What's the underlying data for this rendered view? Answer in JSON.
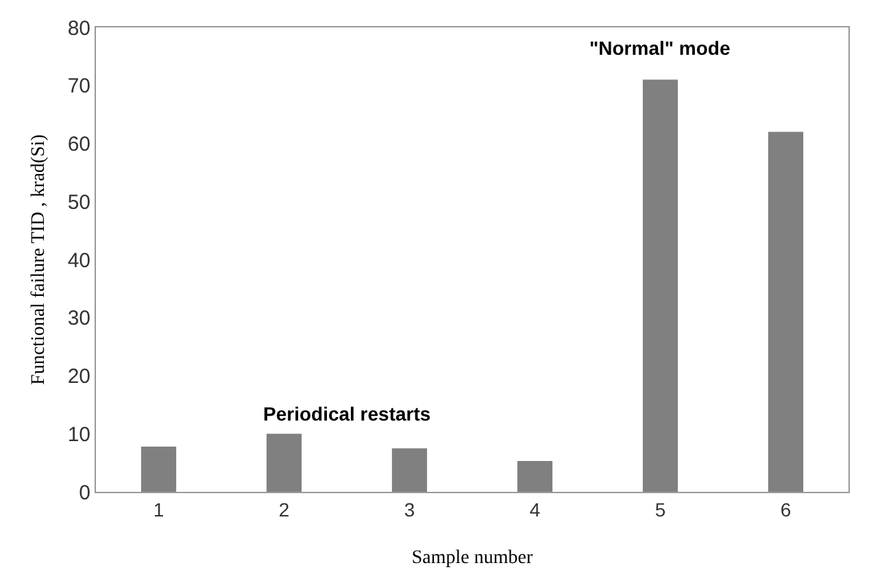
{
  "chart_data": {
    "type": "bar",
    "categories": [
      "1",
      "2",
      "3",
      "4",
      "5",
      "6"
    ],
    "values": [
      7.8,
      10,
      7.5,
      5.3,
      71,
      62
    ],
    "color": "#808080",
    "xlabel": "Sample number",
    "ylabel": "Functional failure TID , krad(Si)",
    "ylim": [
      0,
      80
    ],
    "yticks": [
      0,
      10,
      20,
      30,
      40,
      50,
      60,
      70,
      80
    ],
    "annotations": [
      "Periodical restarts",
      "\"Normal\" mode"
    ]
  }
}
